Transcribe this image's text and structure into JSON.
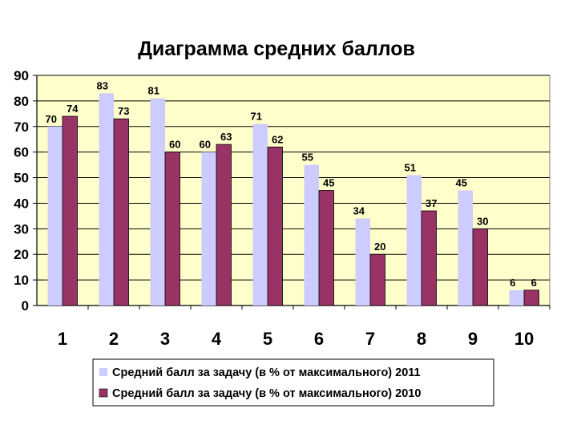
{
  "chart_data": {
    "type": "bar",
    "title": "Диаграмма средних баллов",
    "categories": [
      "1",
      "2",
      "3",
      "4",
      "5",
      "6",
      "7",
      "8",
      "9",
      "10"
    ],
    "series": [
      {
        "name": "Средний балл за задачу (в % от максимального) 2011",
        "color": "#ccccff",
        "values": [
          70,
          83,
          81,
          60,
          71,
          55,
          34,
          51,
          45,
          6
        ]
      },
      {
        "name": "Средний балл за задачу (в % от максимального) 2010",
        "color": "#993366",
        "values": [
          74,
          73,
          60,
          63,
          62,
          45,
          20,
          37,
          30,
          6
        ]
      }
    ],
    "ylim": [
      0,
      90
    ],
    "yticks": [
      0,
      10,
      20,
      30,
      40,
      50,
      60,
      70,
      80,
      90
    ],
    "grid": true,
    "plot_background": "#ffffcc",
    "legend_position": "bottom"
  }
}
